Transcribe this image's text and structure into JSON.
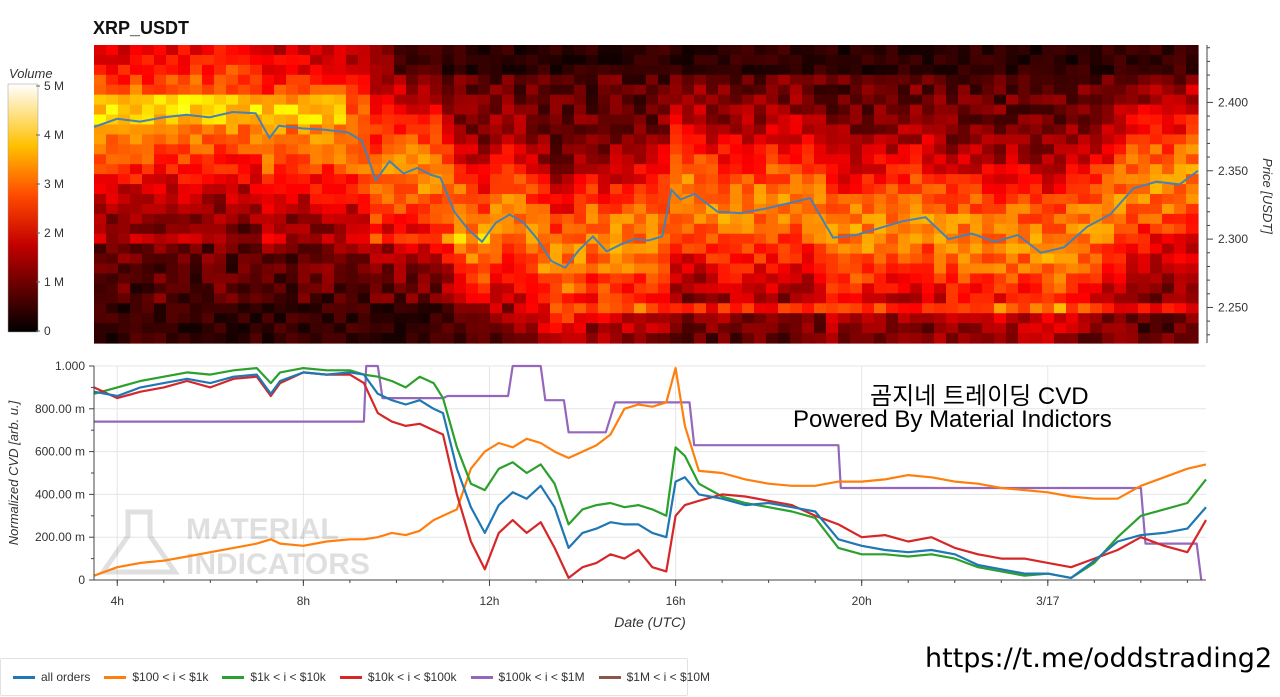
{
  "title": "XRP_USDT",
  "overlay": {
    "line1": "곰지네 트레이딩 CVD",
    "line2": "Powered By Material Indictors"
  },
  "telegram_link": "https://t.me/oddstrading2",
  "watermark": [
    "MATERIAL",
    "INDICATORS"
  ],
  "colors": {
    "all_orders": "#1f77b4",
    "s100_1k": "#ff7f0e",
    "s1k_10k": "#2ca02c",
    "s10k_100k": "#d62728",
    "s100k_1m": "#9467bd",
    "s1m_10m": "#8c564b"
  },
  "chart_data": [
    {
      "type": "heatmap",
      "title": "XRP_USDT",
      "colorbar": {
        "label": "Volume",
        "ticks": [
          "0",
          "1 M",
          "2 M",
          "3 M",
          "4 M",
          "5 M"
        ],
        "range": [
          0,
          5000000
        ],
        "colormap": "hot"
      },
      "y_axis": {
        "label": "Price [USDT]",
        "side": "right",
        "ticks": [
          "2.250",
          "2.300",
          "2.350",
          "2.400"
        ],
        "range": [
          2.224,
          2.442
        ]
      },
      "x_axis": {
        "range": [
          "03:30",
          "27:30"
        ]
      },
      "price_series": {
        "name": "price",
        "color": "#4682b4",
        "x": [
          3.5,
          4.0,
          4.5,
          5.0,
          5.5,
          6.0,
          6.5,
          7.0,
          7.3,
          7.5,
          8.0,
          8.5,
          9.0,
          9.3,
          9.6,
          9.9,
          10.2,
          10.5,
          10.8,
          11.0,
          11.3,
          11.6,
          11.9,
          12.2,
          12.5,
          12.8,
          13.1,
          13.4,
          13.7,
          14.0,
          14.3,
          14.6,
          14.9,
          15.2,
          15.5,
          15.8,
          16.0,
          16.2,
          16.5,
          17.0,
          17.5,
          18.0,
          18.5,
          19.0,
          19.5,
          20.0,
          20.5,
          21.0,
          21.5,
          22.0,
          22.5,
          23.0,
          23.5,
          24.0,
          24.5,
          25.0,
          25.5,
          26.0,
          26.5,
          27.0,
          27.4
        ],
        "y": [
          2.382,
          2.388,
          2.386,
          2.389,
          2.391,
          2.389,
          2.393,
          2.392,
          2.374,
          2.383,
          2.381,
          2.38,
          2.378,
          2.372,
          2.343,
          2.357,
          2.348,
          2.352,
          2.347,
          2.345,
          2.32,
          2.307,
          2.298,
          2.312,
          2.318,
          2.312,
          2.3,
          2.284,
          2.279,
          2.292,
          2.302,
          2.291,
          2.296,
          2.3,
          2.299,
          2.302,
          2.336,
          2.329,
          2.333,
          2.32,
          2.319,
          2.322,
          2.326,
          2.33,
          2.301,
          2.303,
          2.308,
          2.313,
          2.316,
          2.3,
          2.304,
          2.298,
          2.303,
          2.29,
          2.294,
          2.309,
          2.318,
          2.337,
          2.342,
          2.34,
          2.35
        ]
      }
    },
    {
      "type": "line",
      "xlabel": "Date (UTC)",
      "ylabel": "Normalized CVD [arb. u.]",
      "x_ticks": [
        "4h",
        "8h",
        "12h",
        "16h",
        "20h",
        "3/17"
      ],
      "y_ticks": [
        "0",
        "200.00 m",
        "400.00 m",
        "600.00 m",
        "800.00 m",
        "1.000"
      ],
      "ylim": [
        0,
        1.0
      ],
      "xlim": [
        3.5,
        27.4
      ],
      "series": [
        {
          "name": "all orders",
          "x": [
            3.5,
            4.0,
            4.5,
            5.0,
            5.5,
            6.0,
            6.5,
            7.0,
            7.3,
            7.5,
            8.0,
            8.5,
            9.0,
            9.3,
            9.6,
            9.9,
            10.2,
            10.5,
            10.8,
            11.0,
            11.3,
            11.6,
            11.9,
            12.2,
            12.5,
            12.8,
            13.1,
            13.4,
            13.7,
            14.0,
            14.3,
            14.6,
            14.9,
            15.2,
            15.5,
            15.8,
            16.0,
            16.2,
            16.5,
            17.0,
            17.5,
            18.0,
            18.5,
            19.0,
            19.5,
            20.0,
            20.5,
            21.0,
            21.5,
            22.0,
            22.5,
            23.0,
            23.5,
            24.0,
            24.5,
            25.0,
            25.5,
            26.0,
            26.5,
            27.0,
            27.4
          ],
          "y": [
            0.88,
            0.86,
            0.9,
            0.92,
            0.94,
            0.92,
            0.95,
            0.96,
            0.87,
            0.93,
            0.97,
            0.96,
            0.97,
            0.96,
            0.87,
            0.84,
            0.82,
            0.84,
            0.8,
            0.78,
            0.52,
            0.34,
            0.22,
            0.35,
            0.41,
            0.38,
            0.44,
            0.34,
            0.15,
            0.22,
            0.24,
            0.27,
            0.26,
            0.26,
            0.22,
            0.2,
            0.46,
            0.48,
            0.4,
            0.38,
            0.35,
            0.36,
            0.34,
            0.32,
            0.19,
            0.16,
            0.14,
            0.13,
            0.14,
            0.12,
            0.07,
            0.05,
            0.03,
            0.03,
            0.01,
            0.09,
            0.18,
            0.21,
            0.22,
            0.24,
            0.34
          ]
        },
        {
          "name": "$100 < i < $1k",
          "x": [
            3.5,
            4.0,
            4.5,
            5.0,
            5.5,
            6.0,
            6.5,
            7.0,
            7.3,
            7.5,
            8.0,
            8.5,
            9.0,
            9.3,
            9.6,
            9.9,
            10.2,
            10.5,
            10.8,
            11.0,
            11.3,
            11.6,
            11.9,
            12.2,
            12.5,
            12.8,
            13.1,
            13.4,
            13.7,
            14.0,
            14.3,
            14.6,
            14.9,
            15.2,
            15.5,
            15.8,
            16.0,
            16.2,
            16.5,
            17.0,
            17.5,
            18.0,
            18.5,
            19.0,
            19.5,
            20.0,
            20.5,
            21.0,
            21.5,
            22.0,
            22.5,
            23.0,
            23.5,
            24.0,
            24.5,
            25.0,
            25.5,
            26.0,
            26.5,
            27.0,
            27.4
          ],
          "y": [
            0.02,
            0.06,
            0.08,
            0.09,
            0.11,
            0.13,
            0.15,
            0.17,
            0.19,
            0.17,
            0.16,
            0.18,
            0.19,
            0.19,
            0.2,
            0.22,
            0.21,
            0.23,
            0.28,
            0.3,
            0.33,
            0.52,
            0.6,
            0.64,
            0.62,
            0.66,
            0.64,
            0.6,
            0.57,
            0.6,
            0.63,
            0.68,
            0.8,
            0.82,
            0.81,
            0.83,
            0.99,
            0.72,
            0.51,
            0.5,
            0.47,
            0.45,
            0.44,
            0.44,
            0.46,
            0.46,
            0.47,
            0.49,
            0.48,
            0.46,
            0.45,
            0.43,
            0.42,
            0.41,
            0.39,
            0.38,
            0.38,
            0.44,
            0.48,
            0.52,
            0.54
          ]
        },
        {
          "name": "$1k < i < $10k",
          "x": [
            3.5,
            4.0,
            4.5,
            5.0,
            5.5,
            6.0,
            6.5,
            7.0,
            7.3,
            7.5,
            8.0,
            8.5,
            9.0,
            9.3,
            9.6,
            9.9,
            10.2,
            10.5,
            10.8,
            11.0,
            11.3,
            11.6,
            11.9,
            12.2,
            12.5,
            12.8,
            13.1,
            13.4,
            13.7,
            14.0,
            14.3,
            14.6,
            14.9,
            15.2,
            15.5,
            15.8,
            16.0,
            16.2,
            16.5,
            17.0,
            17.5,
            18.0,
            18.5,
            19.0,
            19.5,
            20.0,
            20.5,
            21.0,
            21.5,
            22.0,
            22.5,
            23.0,
            23.5,
            24.0,
            24.5,
            25.0,
            25.5,
            26.0,
            26.5,
            27.0,
            27.4
          ],
          "y": [
            0.87,
            0.9,
            0.93,
            0.95,
            0.97,
            0.96,
            0.98,
            0.99,
            0.92,
            0.97,
            0.99,
            0.98,
            0.98,
            0.96,
            0.95,
            0.93,
            0.9,
            0.95,
            0.92,
            0.85,
            0.62,
            0.45,
            0.42,
            0.52,
            0.55,
            0.5,
            0.54,
            0.45,
            0.26,
            0.33,
            0.35,
            0.36,
            0.34,
            0.35,
            0.33,
            0.3,
            0.62,
            0.58,
            0.45,
            0.39,
            0.36,
            0.34,
            0.32,
            0.29,
            0.15,
            0.12,
            0.12,
            0.11,
            0.12,
            0.1,
            0.06,
            0.04,
            0.02,
            0.03,
            0.01,
            0.08,
            0.2,
            0.3,
            0.33,
            0.36,
            0.47
          ]
        },
        {
          "name": "$10k < i < $100k",
          "x": [
            3.5,
            4.0,
            4.5,
            5.0,
            5.5,
            6.0,
            6.5,
            7.0,
            7.3,
            7.5,
            8.0,
            8.5,
            9.0,
            9.3,
            9.6,
            9.9,
            10.2,
            10.5,
            10.8,
            11.0,
            11.3,
            11.6,
            11.9,
            12.2,
            12.5,
            12.8,
            13.1,
            13.4,
            13.7,
            14.0,
            14.3,
            14.6,
            14.9,
            15.2,
            15.5,
            15.8,
            16.0,
            16.2,
            16.5,
            17.0,
            17.5,
            18.0,
            18.5,
            19.0,
            19.5,
            20.0,
            20.5,
            21.0,
            21.5,
            22.0,
            22.5,
            23.0,
            23.5,
            24.0,
            24.5,
            25.0,
            25.5,
            26.0,
            26.5,
            27.0,
            27.4
          ],
          "y": [
            0.9,
            0.85,
            0.88,
            0.9,
            0.93,
            0.9,
            0.94,
            0.95,
            0.86,
            0.92,
            0.97,
            0.96,
            0.96,
            0.92,
            0.78,
            0.74,
            0.72,
            0.73,
            0.7,
            0.68,
            0.4,
            0.18,
            0.05,
            0.22,
            0.28,
            0.22,
            0.27,
            0.15,
            0.01,
            0.06,
            0.08,
            0.12,
            0.1,
            0.14,
            0.06,
            0.04,
            0.3,
            0.35,
            0.37,
            0.4,
            0.39,
            0.37,
            0.35,
            0.3,
            0.26,
            0.2,
            0.21,
            0.18,
            0.2,
            0.15,
            0.12,
            0.1,
            0.1,
            0.08,
            0.06,
            0.1,
            0.14,
            0.2,
            0.16,
            0.13,
            0.28
          ]
        },
        {
          "name": "$100k < i < $1M",
          "x": [
            3.5,
            9.3,
            9.35,
            9.6,
            9.7,
            10.3,
            10.4,
            11.0,
            11.1,
            12.4,
            12.5,
            13.1,
            13.2,
            13.6,
            13.7,
            14.5,
            14.7,
            16.3,
            16.4,
            19.5,
            19.55,
            23.0,
            23.1,
            26.0,
            26.1,
            27.2,
            27.3
          ],
          "y": [
            0.74,
            0.74,
            1.0,
            1.0,
            0.85,
            0.85,
            0.85,
            0.85,
            0.86,
            0.86,
            1.0,
            1.0,
            0.84,
            0.84,
            0.69,
            0.69,
            0.83,
            0.83,
            0.63,
            0.63,
            0.43,
            0.43,
            0.43,
            0.43,
            0.17,
            0.17,
            0.0
          ]
        },
        {
          "name": "$1M < i < $10M",
          "x": [],
          "y": []
        }
      ]
    }
  ]
}
